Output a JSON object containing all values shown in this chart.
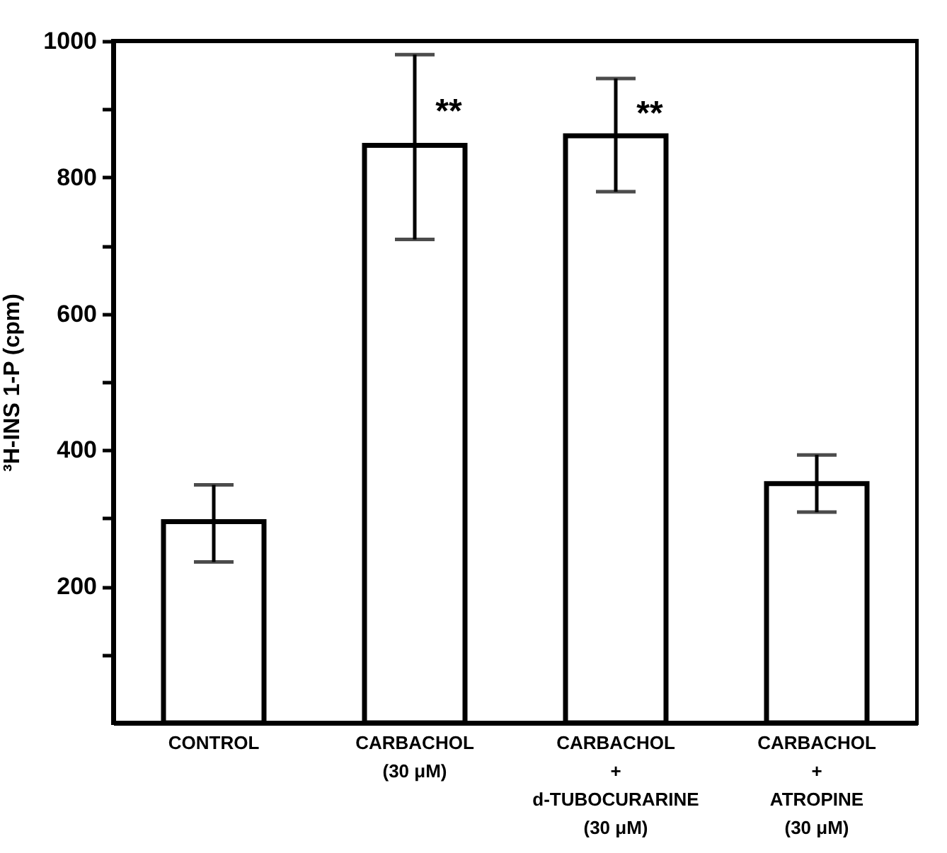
{
  "chart_data": {
    "type": "bar",
    "ylabel": "³H-INS 1-P (cpm)",
    "categories": [
      "CONTROL",
      "CARBACHOL\n(30 μM)",
      "CARBACHOL\n+\nd-TUBOCURARINE\n(30 μM)",
      "CARBACHOL\n+\nATROPINE\n(30 μM)"
    ],
    "values": [
      295,
      847,
      861,
      351
    ],
    "errors": [
      [
        236,
        349
      ],
      [
        709,
        980
      ],
      [
        779,
        945
      ],
      [
        309,
        393
      ]
    ],
    "color": "#ffffff",
    "ylim": [
      0,
      1000
    ],
    "yticks": [
      {
        "value": 100,
        "label": null
      },
      200,
      {
        "value": 300,
        "label": null
      },
      400,
      {
        "value": 500,
        "label": null
      },
      600,
      {
        "value": 700,
        "label": null
      },
      800,
      {
        "value": 900,
        "label": null
      },
      1000
    ],
    "annotations": [
      {
        "text": "**",
        "x": "CARBACHOL\n(30 μM)",
        "y": 908
      },
      {
        "text": "**",
        "x": "CARBACHOL\n+\nd-TUBOCURARINE\n(30 μM)",
        "y": 905
      }
    ],
    "grid": false
  }
}
